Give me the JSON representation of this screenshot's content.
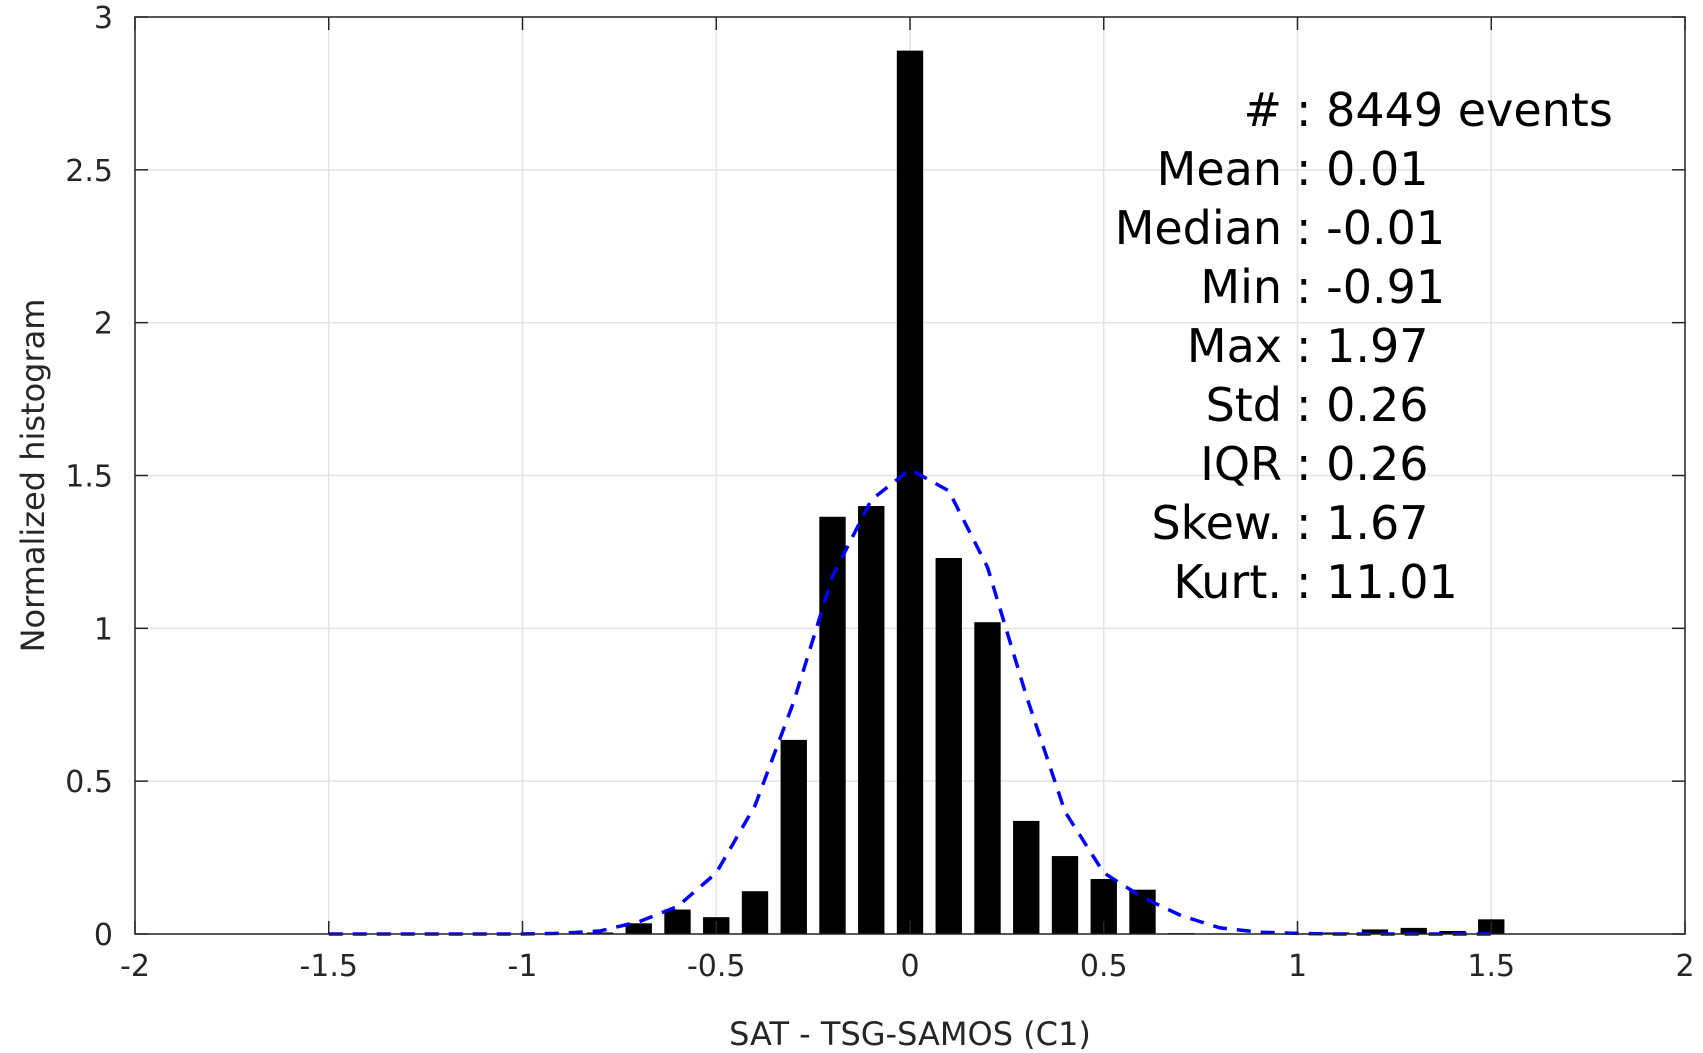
{
  "chart_data": {
    "type": "bar",
    "title": "",
    "xlabel": "SAT - TSG-SAMOS (C1)",
    "ylabel": "Normalized histogram",
    "xlim": [
      -2,
      2
    ],
    "ylim": [
      0,
      3
    ],
    "xticks": [
      -2,
      -1.5,
      -1,
      -0.5,
      0,
      0.5,
      1,
      1.5,
      2
    ],
    "xtick_labels": [
      "-2",
      "-1.5",
      "-1",
      "-0.5",
      "0",
      "0.5",
      "1",
      "1.5",
      "2"
    ],
    "yticks": [
      0,
      0.5,
      1,
      1.5,
      2,
      2.5,
      3
    ],
    "ytick_labels": [
      "0",
      "0.5",
      "1",
      "1.5",
      "2",
      "2.5",
      "3"
    ],
    "grid": true,
    "bar_color": "#000000",
    "bars": {
      "x": [
        -0.8,
        -0.7,
        -0.6,
        -0.5,
        -0.4,
        -0.3,
        -0.2,
        -0.1,
        0.0,
        0.1,
        0.2,
        0.3,
        0.4,
        0.5,
        0.6,
        0.7,
        0.8,
        0.9,
        1.0,
        1.1,
        1.2,
        1.3,
        1.4,
        1.5
      ],
      "values": [
        0.005,
        0.035,
        0.08,
        0.055,
        0.14,
        0.635,
        1.365,
        1.4,
        2.89,
        1.23,
        1.02,
        0.37,
        0.255,
        0.18,
        0.145,
        0.003,
        0.002,
        0.0,
        0.002,
        0.005,
        0.015,
        0.02,
        0.01,
        0.048
      ]
    },
    "fit_curve": {
      "color": "#0000ff",
      "style": "dashed",
      "x": [
        -1.5,
        -1.4,
        -1.3,
        -1.2,
        -1.1,
        -1.0,
        -0.9,
        -0.8,
        -0.7,
        -0.6,
        -0.5,
        -0.4,
        -0.3,
        -0.2,
        -0.1,
        0.0,
        0.1,
        0.2,
        0.3,
        0.4,
        0.5,
        0.6,
        0.7,
        0.8,
        0.9,
        1.0,
        1.1,
        1.2,
        1.3,
        1.4,
        1.5
      ],
      "y": [
        0.0,
        0.0,
        0.0,
        0.0,
        0.0,
        0.0,
        0.002,
        0.01,
        0.04,
        0.09,
        0.2,
        0.42,
        0.76,
        1.17,
        1.42,
        1.52,
        1.45,
        1.2,
        0.78,
        0.4,
        0.2,
        0.12,
        0.06,
        0.02,
        0.006,
        0.002,
        0.0,
        0.0,
        0.0,
        0.0,
        0.0
      ]
    },
    "stats": [
      {
        "label": "#",
        "sep": " : ",
        "value": "8449 events"
      },
      {
        "label": "Mean",
        "sep": " : ",
        "value": "0.01"
      },
      {
        "label": "Median",
        "sep": " : ",
        "value": "-0.01"
      },
      {
        "label": "Min",
        "sep": " : ",
        "value": "-0.91"
      },
      {
        "label": "Max",
        "sep": " : ",
        "value": "1.97"
      },
      {
        "label": "Std",
        "sep": " : ",
        "value": "0.26"
      },
      {
        "label": "IQR",
        "sep": " : ",
        "value": "0.26"
      },
      {
        "label": "Skew.",
        "sep": " : ",
        "value": "1.67"
      },
      {
        "label": "Kurt.",
        "sep": " : ",
        "value": "11.01"
      }
    ]
  }
}
